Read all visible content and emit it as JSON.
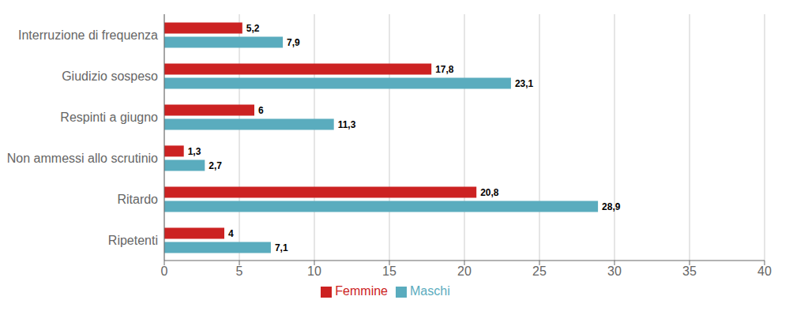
{
  "chart_data": {
    "type": "bar",
    "orientation": "horizontal",
    "categories": [
      "Interruzione di frequenza",
      "Giudizio sospeso",
      "Respinti a giugno",
      "Non ammessi allo scrutinio",
      "Ritardo",
      "Ripetenti"
    ],
    "series": [
      {
        "name": "Femmine",
        "color": "#cc2222",
        "values": [
          5.2,
          17.8,
          6.0,
          1.3,
          20.8,
          4.0
        ],
        "value_labels": [
          "5,2",
          "17,8",
          "6",
          "1,3",
          "20,8",
          "4"
        ]
      },
      {
        "name": "Maschi",
        "color": "#5aacbe",
        "values": [
          7.9,
          23.1,
          11.3,
          2.7,
          28.9,
          7.1
        ],
        "value_labels": [
          "7,9",
          "23,1",
          "11,3",
          "2,7",
          "28,9",
          "7,1"
        ]
      }
    ],
    "xlim": [
      0,
      40
    ],
    "xticks": [
      0,
      5,
      10,
      15,
      20,
      25,
      30,
      35,
      40
    ],
    "grid": true,
    "legend": "bottom",
    "data_labels": true
  }
}
